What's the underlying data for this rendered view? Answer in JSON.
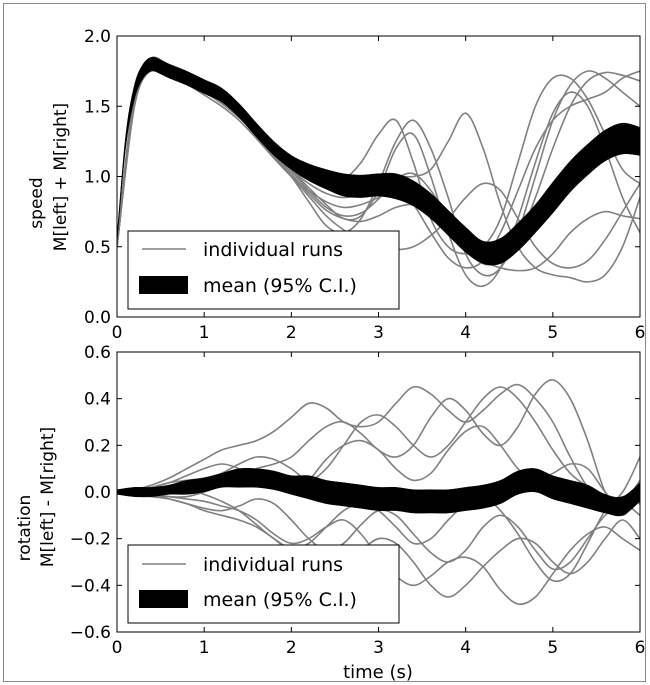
{
  "chart_data": [
    {
      "type": "line",
      "ylabel_top": "speed",
      "ylabel_bottom": "M[left] + M[right]",
      "xlim": [
        0,
        6
      ],
      "ylim": [
        0.0,
        2.0
      ],
      "xticks": [
        "0",
        "1",
        "2",
        "3",
        "4",
        "5",
        "6"
      ],
      "yticks": [
        "0.0",
        "0.5",
        "1.0",
        "1.5",
        "2.0"
      ],
      "xtick_values": [
        0,
        1,
        2,
        3,
        4,
        5,
        6
      ],
      "ytick_values": [
        0.0,
        0.5,
        1.0,
        1.5,
        2.0
      ],
      "legend": {
        "position": "lower-left",
        "runs_label": "individual runs",
        "mean_label": "mean (95% C.I.)"
      },
      "grid": false,
      "mean": {
        "x": [
          0,
          0.1,
          0.2,
          0.3,
          0.4,
          0.5,
          0.6,
          0.8,
          1.0,
          1.2,
          1.4,
          1.6,
          1.8,
          2.0,
          2.2,
          2.4,
          2.6,
          2.8,
          3.0,
          3.2,
          3.4,
          3.6,
          3.8,
          4.0,
          4.2,
          4.4,
          4.6,
          4.8,
          5.0,
          5.2,
          5.4,
          5.6,
          5.8,
          6.0
        ],
        "y": [
          0.55,
          1.25,
          1.6,
          1.75,
          1.8,
          1.78,
          1.75,
          1.7,
          1.64,
          1.58,
          1.47,
          1.33,
          1.2,
          1.1,
          1.03,
          0.98,
          0.94,
          0.93,
          0.94,
          0.93,
          0.88,
          0.79,
          0.67,
          0.55,
          0.46,
          0.47,
          0.57,
          0.7,
          0.85,
          1.0,
          1.12,
          1.22,
          1.27,
          1.25
        ],
        "ci_half": [
          0.02,
          0.04,
          0.05,
          0.05,
          0.05,
          0.05,
          0.05,
          0.05,
          0.05,
          0.05,
          0.05,
          0.05,
          0.05,
          0.05,
          0.06,
          0.07,
          0.08,
          0.08,
          0.08,
          0.09,
          0.09,
          0.09,
          0.09,
          0.09,
          0.08,
          0.09,
          0.1,
          0.1,
          0.11,
          0.11,
          0.11,
          0.11,
          0.11,
          0.1
        ]
      },
      "runs_x": [
        0,
        0.2,
        0.4,
        0.6,
        0.8,
        1.0,
        1.2,
        1.4,
        1.6,
        1.8,
        2.0,
        2.2,
        2.4,
        2.6,
        2.8,
        3.0,
        3.2,
        3.4,
        3.6,
        3.8,
        4.0,
        4.2,
        4.4,
        4.6,
        4.8,
        5.0,
        5.2,
        5.4,
        5.6,
        5.8,
        6.0
      ],
      "runs": [
        [
          0.5,
          1.55,
          1.8,
          1.75,
          1.68,
          1.62,
          1.55,
          1.45,
          1.3,
          1.15,
          1.0,
          0.82,
          0.65,
          0.6,
          0.7,
          0.95,
          1.25,
          1.4,
          1.2,
          0.85,
          0.45,
          0.3,
          0.35,
          0.6,
          1.0,
          1.4,
          1.65,
          1.75,
          1.7,
          1.6,
          1.5
        ],
        [
          0.5,
          1.6,
          1.82,
          1.77,
          1.7,
          1.65,
          1.58,
          1.48,
          1.35,
          1.2,
          1.05,
          0.92,
          0.8,
          0.7,
          0.72,
          0.9,
          1.2,
          1.3,
          1.0,
          0.6,
          0.3,
          0.22,
          0.35,
          0.7,
          1.1,
          1.45,
          1.6,
          1.5,
          1.2,
          0.85,
          0.6
        ],
        [
          0.5,
          1.5,
          1.78,
          1.76,
          1.7,
          1.63,
          1.55,
          1.44,
          1.3,
          1.16,
          1.05,
          0.98,
          0.95,
          0.98,
          1.1,
          1.3,
          1.4,
          1.1,
          0.7,
          0.5,
          0.45,
          0.5,
          0.7,
          1.1,
          1.5,
          1.7,
          1.7,
          1.55,
          1.3,
          1.05,
          0.95
        ],
        [
          0.5,
          1.55,
          1.79,
          1.74,
          1.66,
          1.58,
          1.5,
          1.4,
          1.27,
          1.13,
          1.0,
          0.9,
          0.82,
          0.78,
          0.8,
          0.85,
          0.9,
          0.8,
          0.6,
          0.42,
          0.35,
          0.4,
          0.6,
          0.9,
          1.2,
          1.4,
          1.5,
          1.55,
          1.6,
          1.7,
          1.75
        ],
        [
          0.5,
          1.5,
          1.76,
          1.72,
          1.66,
          1.6,
          1.52,
          1.42,
          1.3,
          1.17,
          1.05,
          0.95,
          0.88,
          0.85,
          0.88,
          0.95,
          1.0,
          1.0,
          1.05,
          1.25,
          1.45,
          1.2,
          0.8,
          0.5,
          0.35,
          0.3,
          0.28,
          0.25,
          0.3,
          0.5,
          0.85
        ],
        [
          0.5,
          1.6,
          1.84,
          1.78,
          1.7,
          1.64,
          1.57,
          1.47,
          1.33,
          1.17,
          1.02,
          0.88,
          0.76,
          0.7,
          0.68,
          0.72,
          0.78,
          0.8,
          0.75,
          0.65,
          0.5,
          0.4,
          0.35,
          0.33,
          0.35,
          0.45,
          0.6,
          0.7,
          0.75,
          0.72,
          0.7
        ],
        [
          0.5,
          1.52,
          1.77,
          1.75,
          1.68,
          1.62,
          1.54,
          1.43,
          1.29,
          1.14,
          1.0,
          0.86,
          0.72,
          0.62,
          0.55,
          0.5,
          0.48,
          0.5,
          0.58,
          0.7,
          0.85,
          0.95,
          0.9,
          0.7,
          0.5,
          0.38,
          0.35,
          0.4,
          0.55,
          0.75,
          0.95
        ],
        [
          0.5,
          1.58,
          1.81,
          1.76,
          1.69,
          1.63,
          1.55,
          1.45,
          1.32,
          1.18,
          1.04,
          0.9,
          0.78,
          0.72,
          0.74,
          0.84,
          0.98,
          1.02,
          0.9,
          0.7,
          0.5,
          0.38,
          0.4,
          0.55,
          0.85,
          1.2,
          1.5,
          1.68,
          1.74,
          1.72,
          1.68
        ]
      ]
    },
    {
      "type": "line",
      "ylabel_top": "rotation",
      "ylabel_bottom": "M[left] - M[right]",
      "xlabel": "time (s)",
      "xlim": [
        0,
        6
      ],
      "ylim": [
        -0.6,
        0.6
      ],
      "xticks": [
        "0",
        "1",
        "2",
        "3",
        "4",
        "5",
        "6"
      ],
      "yticks": [
        "−0.6",
        "−0.4",
        "−0.2",
        "0.0",
        "0.2",
        "0.4",
        "0.6"
      ],
      "xtick_values": [
        0,
        1,
        2,
        3,
        4,
        5,
        6
      ],
      "ytick_values": [
        -0.6,
        -0.4,
        -0.2,
        0.0,
        0.2,
        0.4,
        0.6
      ],
      "legend": {
        "position": "lower-left",
        "runs_label": "individual runs",
        "mean_label": "mean (95% C.I.)"
      },
      "grid": false,
      "mean": {
        "x": [
          0,
          0.2,
          0.4,
          0.6,
          0.8,
          1.0,
          1.2,
          1.4,
          1.6,
          1.8,
          2.0,
          2.2,
          2.4,
          2.6,
          2.8,
          3.0,
          3.2,
          3.4,
          3.6,
          3.8,
          4.0,
          4.2,
          4.4,
          4.6,
          4.8,
          5.0,
          5.2,
          5.4,
          5.6,
          5.8,
          6.0
        ],
        "y": [
          0.0,
          0.0,
          0.0,
          0.01,
          0.02,
          0.03,
          0.05,
          0.06,
          0.06,
          0.05,
          0.03,
          0.02,
          0.0,
          -0.01,
          -0.02,
          -0.03,
          -0.03,
          -0.04,
          -0.04,
          -0.04,
          -0.03,
          -0.02,
          0.0,
          0.04,
          0.05,
          0.02,
          0.0,
          -0.02,
          -0.05,
          -0.06,
          0.0
        ],
        "ci_half": [
          0.01,
          0.02,
          0.02,
          0.02,
          0.03,
          0.03,
          0.03,
          0.04,
          0.04,
          0.04,
          0.04,
          0.05,
          0.05,
          0.05,
          0.05,
          0.05,
          0.05,
          0.05,
          0.05,
          0.05,
          0.05,
          0.05,
          0.05,
          0.05,
          0.05,
          0.05,
          0.05,
          0.05,
          0.04,
          0.04,
          0.04
        ]
      },
      "runs_x": [
        0,
        0.2,
        0.4,
        0.6,
        0.8,
        1.0,
        1.2,
        1.4,
        1.6,
        1.8,
        2.0,
        2.2,
        2.4,
        2.6,
        2.8,
        3.0,
        3.2,
        3.4,
        3.6,
        3.8,
        4.0,
        4.2,
        4.4,
        4.6,
        4.8,
        5.0,
        5.2,
        5.4,
        5.6,
        5.8,
        6.0
      ],
      "runs": [
        [
          0.0,
          0.01,
          0.03,
          0.06,
          0.1,
          0.14,
          0.18,
          0.2,
          0.22,
          0.26,
          0.32,
          0.38,
          0.36,
          0.3,
          0.28,
          0.3,
          0.38,
          0.45,
          0.42,
          0.35,
          0.3,
          0.35,
          0.42,
          0.46,
          0.4,
          0.3,
          0.15,
          0.02,
          -0.05,
          0.0,
          0.15
        ],
        [
          0.0,
          -0.01,
          -0.02,
          -0.03,
          -0.05,
          -0.08,
          -0.1,
          -0.12,
          -0.15,
          -0.2,
          -0.26,
          -0.3,
          -0.32,
          -0.3,
          -0.25,
          -0.2,
          -0.22,
          -0.3,
          -0.4,
          -0.45,
          -0.4,
          -0.32,
          -0.25,
          -0.2,
          -0.22,
          -0.3,
          -0.35,
          -0.3,
          -0.2,
          -0.12,
          -0.2
        ],
        [
          0.0,
          0.0,
          0.02,
          0.04,
          0.05,
          0.06,
          0.08,
          0.12,
          0.15,
          0.14,
          0.1,
          0.05,
          0.1,
          0.2,
          0.3,
          0.33,
          0.28,
          0.2,
          0.15,
          0.2,
          0.3,
          0.4,
          0.45,
          0.4,
          0.3,
          0.18,
          0.08,
          0.02,
          -0.05,
          -0.05,
          0.05
        ],
        [
          0.0,
          -0.01,
          -0.01,
          -0.02,
          -0.03,
          -0.04,
          -0.06,
          -0.08,
          -0.12,
          -0.18,
          -0.22,
          -0.2,
          -0.15,
          -0.12,
          -0.18,
          -0.28,
          -0.36,
          -0.4,
          -0.36,
          -0.3,
          -0.28,
          -0.32,
          -0.42,
          -0.48,
          -0.45,
          -0.35,
          -0.25,
          -0.18,
          -0.15,
          -0.2,
          -0.25
        ],
        [
          0.0,
          0.01,
          0.02,
          0.04,
          0.07,
          0.1,
          0.12,
          0.1,
          0.06,
          0.02,
          0.0,
          0.05,
          0.14,
          0.2,
          0.22,
          0.18,
          0.1,
          0.05,
          0.08,
          0.18,
          0.26,
          0.28,
          0.2,
          0.1,
          0.05,
          0.08,
          0.12,
          0.1,
          0.0,
          -0.08,
          0.05
        ],
        [
          0.0,
          0.0,
          -0.01,
          -0.02,
          -0.02,
          0.0,
          0.03,
          0.07,
          0.1,
          0.12,
          0.15,
          0.22,
          0.28,
          0.3,
          0.25,
          0.18,
          0.15,
          0.2,
          0.32,
          0.4,
          0.35,
          0.25,
          0.2,
          0.28,
          0.42,
          0.48,
          0.4,
          0.22,
          0.0,
          -0.1,
          0.0
        ],
        [
          0.0,
          0.0,
          -0.01,
          -0.03,
          -0.05,
          -0.07,
          -0.08,
          -0.06,
          -0.03,
          -0.05,
          -0.12,
          -0.2,
          -0.25,
          -0.22,
          -0.14,
          -0.08,
          -0.1,
          -0.18,
          -0.26,
          -0.3,
          -0.25,
          -0.15,
          -0.1,
          -0.15,
          -0.25,
          -0.33,
          -0.3,
          -0.2,
          -0.1,
          -0.05,
          -0.1
        ],
        [
          0.0,
          0.01,
          0.02,
          0.02,
          0.01,
          -0.01,
          -0.04,
          -0.08,
          -0.14,
          -0.2,
          -0.24,
          -0.22,
          -0.15,
          -0.08,
          -0.05,
          -0.08,
          -0.15,
          -0.22,
          -0.2,
          -0.12,
          -0.05,
          -0.02,
          -0.08,
          -0.18,
          -0.3,
          -0.38,
          -0.35,
          -0.22,
          -0.08,
          -0.02,
          -0.05
        ]
      ]
    }
  ]
}
